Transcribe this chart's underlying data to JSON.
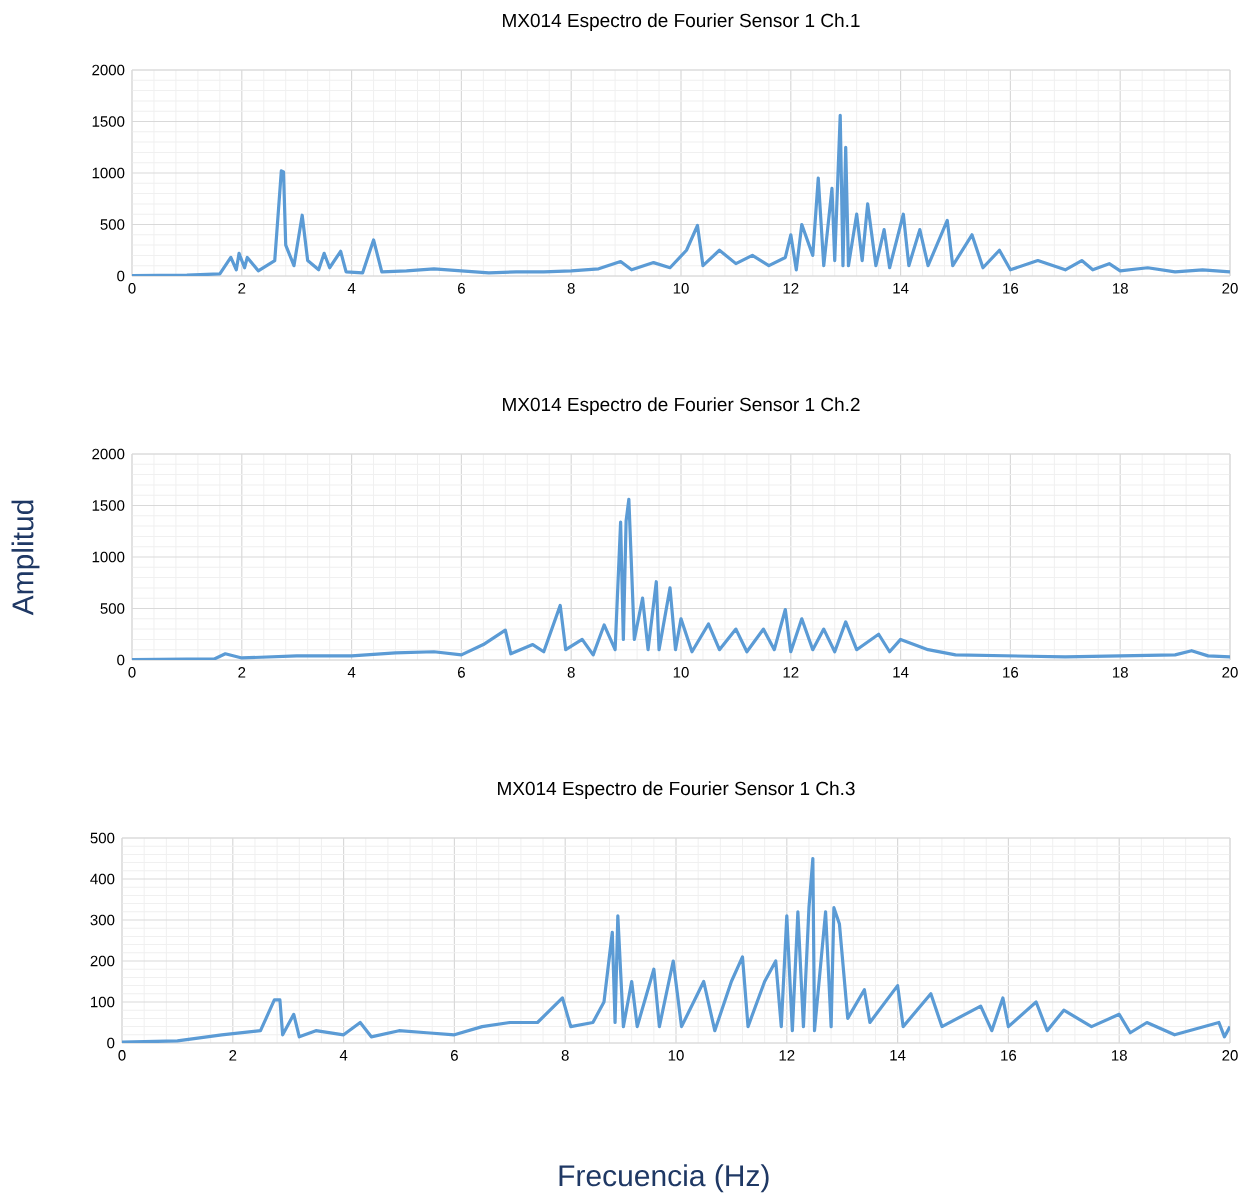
{
  "chart_data": [
    {
      "type": "line",
      "title": "MX014 Espectro de Fourier Sensor 1 Ch.1",
      "xlim": [
        0,
        20
      ],
      "xticks": [
        0,
        2,
        4,
        6,
        8,
        10,
        12,
        14,
        16,
        18,
        20
      ],
      "ylim": [
        0,
        2000
      ],
      "yticks": [
        0,
        500,
        1000,
        1500,
        2000
      ],
      "grid": true,
      "series": [
        {
          "color": "#5b9bd5",
          "x": [
            0,
            1,
            1.6,
            1.8,
            1.9,
            1.95,
            2.05,
            2.1,
            2.3,
            2.6,
            2.72,
            2.76,
            2.8,
            2.95,
            3.1,
            3.2,
            3.4,
            3.5,
            3.6,
            3.8,
            3.9,
            4.2,
            4.4,
            4.55,
            5,
            5.5,
            6,
            6.5,
            7,
            7.5,
            8,
            8.5,
            8.9,
            9.1,
            9.5,
            9.8,
            10.1,
            10.3,
            10.4,
            10.7,
            11,
            11.3,
            11.6,
            11.9,
            12.0,
            12.1,
            12.2,
            12.4,
            12.5,
            12.6,
            12.75,
            12.8,
            12.9,
            12.95,
            13.0,
            13.05,
            13.2,
            13.3,
            13.4,
            13.55,
            13.7,
            13.8,
            14.05,
            14.15,
            14.35,
            14.5,
            14.85,
            14.95,
            15.3,
            15.5,
            15.8,
            16,
            16.5,
            17,
            17.3,
            17.5,
            17.8,
            18,
            18.5,
            19,
            19.5,
            20
          ],
          "values": [
            5,
            8,
            20,
            180,
            60,
            220,
            80,
            180,
            50,
            150,
            1020,
            1010,
            300,
            100,
            590,
            150,
            60,
            220,
            80,
            240,
            40,
            30,
            350,
            40,
            50,
            70,
            50,
            30,
            40,
            40,
            50,
            70,
            140,
            60,
            130,
            80,
            250,
            490,
            100,
            250,
            120,
            200,
            100,
            180,
            400,
            60,
            500,
            200,
            950,
            100,
            850,
            150,
            1560,
            100,
            1250,
            100,
            600,
            150,
            700,
            100,
            450,
            80,
            600,
            100,
            450,
            100,
            540,
            100,
            400,
            80,
            250,
            60,
            150,
            60,
            150,
            60,
            120,
            50,
            80,
            40,
            60,
            40
          ]
        }
      ]
    },
    {
      "type": "line",
      "title": "MX014 Espectro de Fourier Sensor 1 Ch.2",
      "ylabel": "Amplitud",
      "xlim": [
        0,
        20
      ],
      "xticks": [
        0,
        2,
        4,
        6,
        8,
        10,
        12,
        14,
        16,
        18,
        20
      ],
      "ylim": [
        0,
        2000
      ],
      "yticks": [
        0,
        500,
        1000,
        1500,
        2000
      ],
      "grid": true,
      "series": [
        {
          "color": "#5b9bd5",
          "x": [
            0,
            1.5,
            1.7,
            2,
            3,
            4,
            4.8,
            5.5,
            6,
            6.4,
            6.8,
            6.9,
            7.3,
            7.5,
            7.8,
            7.9,
            8.2,
            8.4,
            8.6,
            8.8,
            8.9,
            8.95,
            9.0,
            9.05,
            9.15,
            9.3,
            9.4,
            9.55,
            9.6,
            9.8,
            9.9,
            10.0,
            10.2,
            10.5,
            10.7,
            11,
            11.2,
            11.5,
            11.7,
            11.9,
            12.0,
            12.2,
            12.4,
            12.6,
            12.8,
            13.0,
            13.2,
            13.6,
            13.8,
            14.0,
            14.5,
            15,
            16,
            17,
            18,
            19,
            19.3,
            19.6,
            20
          ],
          "values": [
            5,
            10,
            60,
            20,
            40,
            40,
            70,
            80,
            50,
            150,
            290,
            60,
            150,
            80,
            530,
            100,
            200,
            50,
            340,
            100,
            1340,
            200,
            1350,
            1560,
            200,
            600,
            100,
            760,
            100,
            700,
            100,
            400,
            80,
            350,
            100,
            300,
            80,
            300,
            100,
            490,
            80,
            400,
            100,
            300,
            80,
            370,
            100,
            250,
            80,
            200,
            100,
            50,
            40,
            30,
            40,
            50,
            90,
            40,
            30
          ]
        }
      ]
    },
    {
      "type": "line",
      "title": "MX014 Espectro de Fourier Sensor 1 Ch.3",
      "xlabel": "Frecuencia (Hz)",
      "xlim": [
        0,
        20
      ],
      "xticks": [
        0,
        2,
        4,
        6,
        8,
        10,
        12,
        14,
        16,
        18,
        20
      ],
      "ylim": [
        0,
        500
      ],
      "yticks": [
        0,
        100,
        200,
        300,
        400,
        500
      ],
      "grid": true,
      "series": [
        {
          "color": "#5b9bd5",
          "x": [
            0,
            1,
            1.8,
            2.5,
            2.75,
            2.85,
            2.9,
            3.1,
            3.2,
            3.5,
            4.0,
            4.3,
            4.5,
            5,
            5.5,
            6,
            6.5,
            7,
            7.5,
            7.95,
            8.1,
            8.5,
            8.7,
            8.85,
            8.9,
            8.95,
            9.05,
            9.2,
            9.3,
            9.6,
            9.7,
            9.95,
            10.1,
            10.5,
            10.7,
            11.0,
            11.2,
            11.3,
            11.6,
            11.8,
            11.9,
            12.0,
            12.1,
            12.2,
            12.3,
            12.4,
            12.47,
            12.5,
            12.7,
            12.8,
            12.85,
            12.95,
            13.1,
            13.4,
            13.5,
            14.0,
            14.1,
            14.6,
            14.8,
            15.5,
            15.7,
            15.9,
            16,
            16.5,
            16.7,
            17,
            17.5,
            18,
            18.2,
            18.5,
            19,
            19.8,
            19.9,
            20
          ],
          "values": [
            2,
            5,
            20,
            30,
            105,
            105,
            20,
            70,
            15,
            30,
            20,
            50,
            15,
            30,
            25,
            20,
            40,
            50,
            50,
            110,
            40,
            50,
            100,
            270,
            50,
            310,
            40,
            150,
            40,
            180,
            40,
            200,
            40,
            150,
            30,
            150,
            210,
            40,
            150,
            200,
            40,
            310,
            30,
            320,
            40,
            330,
            450,
            30,
            320,
            40,
            330,
            290,
            60,
            130,
            50,
            140,
            40,
            120,
            40,
            90,
            30,
            110,
            40,
            100,
            30,
            80,
            40,
            70,
            25,
            50,
            20,
            50,
            15,
            40
          ]
        }
      ]
    }
  ]
}
